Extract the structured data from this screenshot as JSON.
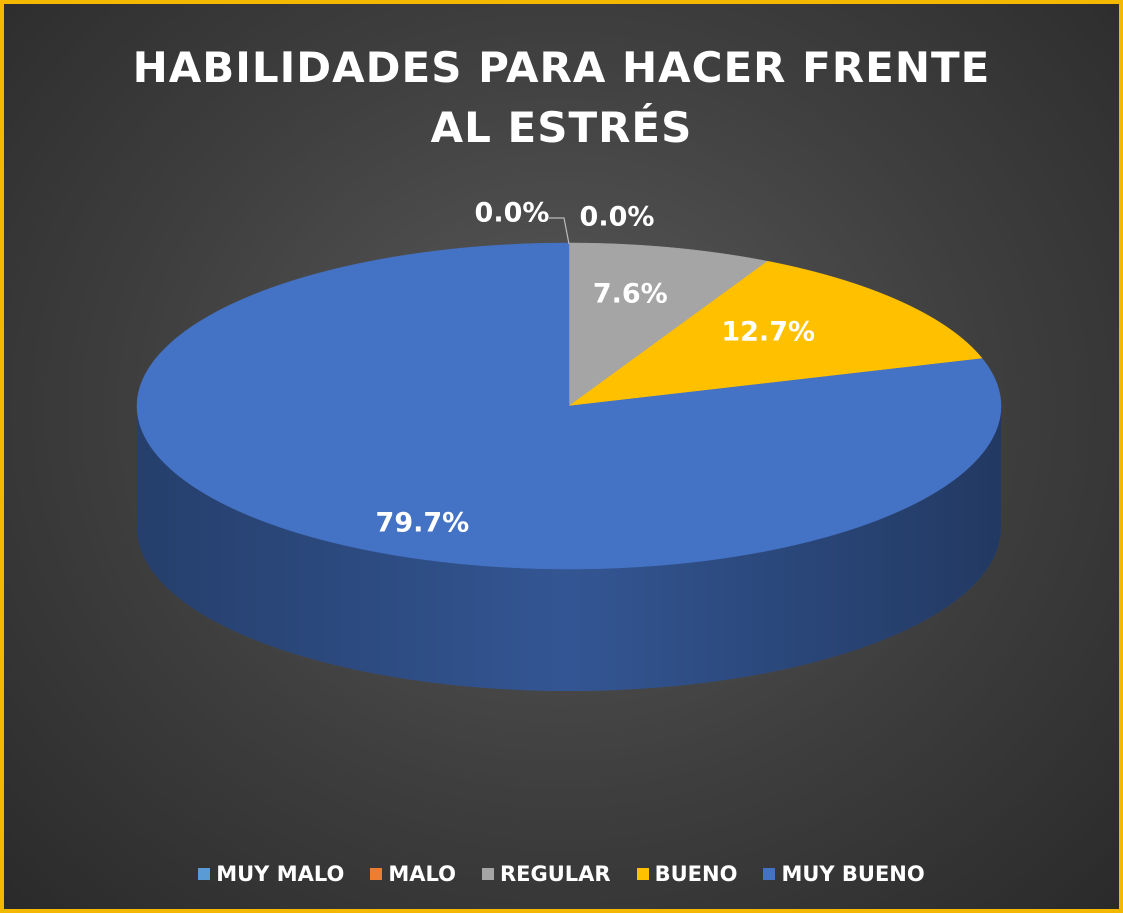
{
  "chart_data": {
    "type": "pie3d",
    "title": "HABILIDADES PARA HACER FRENTE AL ESTRÉS",
    "categories": [
      "MUY MALO",
      "MALO",
      "REGULAR",
      "BUENO",
      "MUY BUENO"
    ],
    "values": [
      0.0,
      0.0,
      7.6,
      12.7,
      79.7
    ],
    "value_labels": [
      "0.0%",
      "0.0%",
      "7.6%",
      "12.7%",
      "79.7%"
    ],
    "colors": [
      "#5b9bd5",
      "#ed7d31",
      "#a5a5a5",
      "#ffc000",
      "#4472c4"
    ],
    "legend": "bottom"
  }
}
